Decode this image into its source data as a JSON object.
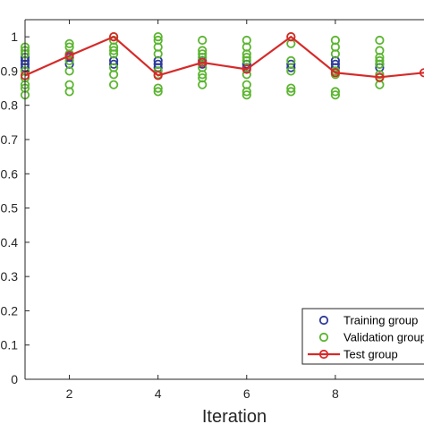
{
  "chart_data": {
    "type": "scatter",
    "title": "",
    "xlabel": "Iteration",
    "ylabel": "",
    "xlim": [
      1,
      10
    ],
    "ylim": [
      0,
      1.05
    ],
    "xticks": [
      2,
      4,
      6,
      8
    ],
    "xtick_labels": [
      "2",
      "4",
      "6",
      "8"
    ],
    "yticks": [
      0,
      0.1,
      0.2,
      0.3,
      0.4,
      0.5,
      0.6,
      0.7,
      0.8,
      0.9,
      1
    ],
    "ytick_labels": [
      "0",
      "0.1",
      "0.2",
      "0.3",
      "0.4",
      "0.5",
      "0.6",
      "0.7",
      "0.8",
      "0.9",
      "1"
    ],
    "grid": false,
    "legend_position": "bottom-right",
    "series": [
      {
        "name": "Training group",
        "kind": "scatter",
        "marker": "open-circle",
        "color": "#2e3b9b",
        "points": [
          [
            1,
            0.94
          ],
          [
            1,
            0.93
          ],
          [
            1,
            0.92
          ],
          [
            1,
            0.91
          ],
          [
            2,
            0.92
          ],
          [
            2,
            0.94
          ],
          [
            3,
            0.93
          ],
          [
            3,
            0.92
          ],
          [
            4,
            0.93
          ],
          [
            4,
            0.92
          ],
          [
            4,
            0.91
          ],
          [
            5,
            0.92
          ],
          [
            5,
            0.93
          ],
          [
            6,
            0.92
          ],
          [
            6,
            0.91
          ],
          [
            7,
            0.91
          ],
          [
            7,
            0.92
          ],
          [
            8,
            0.92
          ],
          [
            8,
            0.91
          ],
          [
            8,
            0.93
          ],
          [
            9,
            0.91
          ],
          [
            9,
            0.92
          ]
        ]
      },
      {
        "name": "Validation group",
        "kind": "scatter",
        "marker": "open-circle",
        "color": "#5bb530",
        "points": [
          [
            1,
            0.97
          ],
          [
            1,
            0.96
          ],
          [
            1,
            0.95
          ],
          [
            1,
            0.9
          ],
          [
            1,
            0.88
          ],
          [
            1,
            0.86
          ],
          [
            1,
            0.85
          ],
          [
            1,
            0.83
          ],
          [
            2,
            0.98
          ],
          [
            2,
            0.97
          ],
          [
            2,
            0.95
          ],
          [
            2,
            0.93
          ],
          [
            2,
            0.9
          ],
          [
            2,
            0.86
          ],
          [
            2,
            0.84
          ],
          [
            3,
            1.0
          ],
          [
            3,
            0.99
          ],
          [
            3,
            0.97
          ],
          [
            3,
            0.96
          ],
          [
            3,
            0.95
          ],
          [
            3,
            0.91
          ],
          [
            3,
            0.89
          ],
          [
            3,
            0.86
          ],
          [
            4,
            1.0
          ],
          [
            4,
            0.99
          ],
          [
            4,
            0.97
          ],
          [
            4,
            0.95
          ],
          [
            4,
            0.9
          ],
          [
            4,
            0.89
          ],
          [
            4,
            0.85
          ],
          [
            4,
            0.84
          ],
          [
            5,
            0.99
          ],
          [
            5,
            0.96
          ],
          [
            5,
            0.95
          ],
          [
            5,
            0.94
          ],
          [
            5,
            0.91
          ],
          [
            5,
            0.89
          ],
          [
            5,
            0.88
          ],
          [
            5,
            0.86
          ],
          [
            6,
            0.99
          ],
          [
            6,
            0.97
          ],
          [
            6,
            0.95
          ],
          [
            6,
            0.94
          ],
          [
            6,
            0.93
          ],
          [
            6,
            0.89
          ],
          [
            6,
            0.86
          ],
          [
            6,
            0.84
          ],
          [
            6,
            0.83
          ],
          [
            7,
            1.0
          ],
          [
            7,
            0.98
          ],
          [
            7,
            0.93
          ],
          [
            7,
            0.9
          ],
          [
            7,
            0.85
          ],
          [
            7,
            0.84
          ],
          [
            8,
            0.99
          ],
          [
            8,
            0.97
          ],
          [
            8,
            0.95
          ],
          [
            8,
            0.9
          ],
          [
            8,
            0.89
          ],
          [
            8,
            0.84
          ],
          [
            8,
            0.83
          ],
          [
            9,
            0.99
          ],
          [
            9,
            0.96
          ],
          [
            9,
            0.94
          ],
          [
            9,
            0.93
          ],
          [
            9,
            0.92
          ],
          [
            9,
            0.89
          ],
          [
            9,
            0.88
          ],
          [
            9,
            0.86
          ]
        ]
      },
      {
        "name": "Test group",
        "kind": "line",
        "marker": "open-circle",
        "color": "#d62a2a",
        "points": [
          [
            1,
            0.887
          ],
          [
            2,
            0.945
          ],
          [
            3,
            1.0
          ],
          [
            4,
            0.887
          ],
          [
            5,
            0.925
          ],
          [
            6,
            0.905
          ],
          [
            7,
            1.0
          ],
          [
            8,
            0.895
          ],
          [
            9,
            0.882
          ],
          [
            10,
            0.895
          ]
        ]
      }
    ],
    "legend": [
      "Training group",
      "Validation group",
      "Test group"
    ]
  }
}
